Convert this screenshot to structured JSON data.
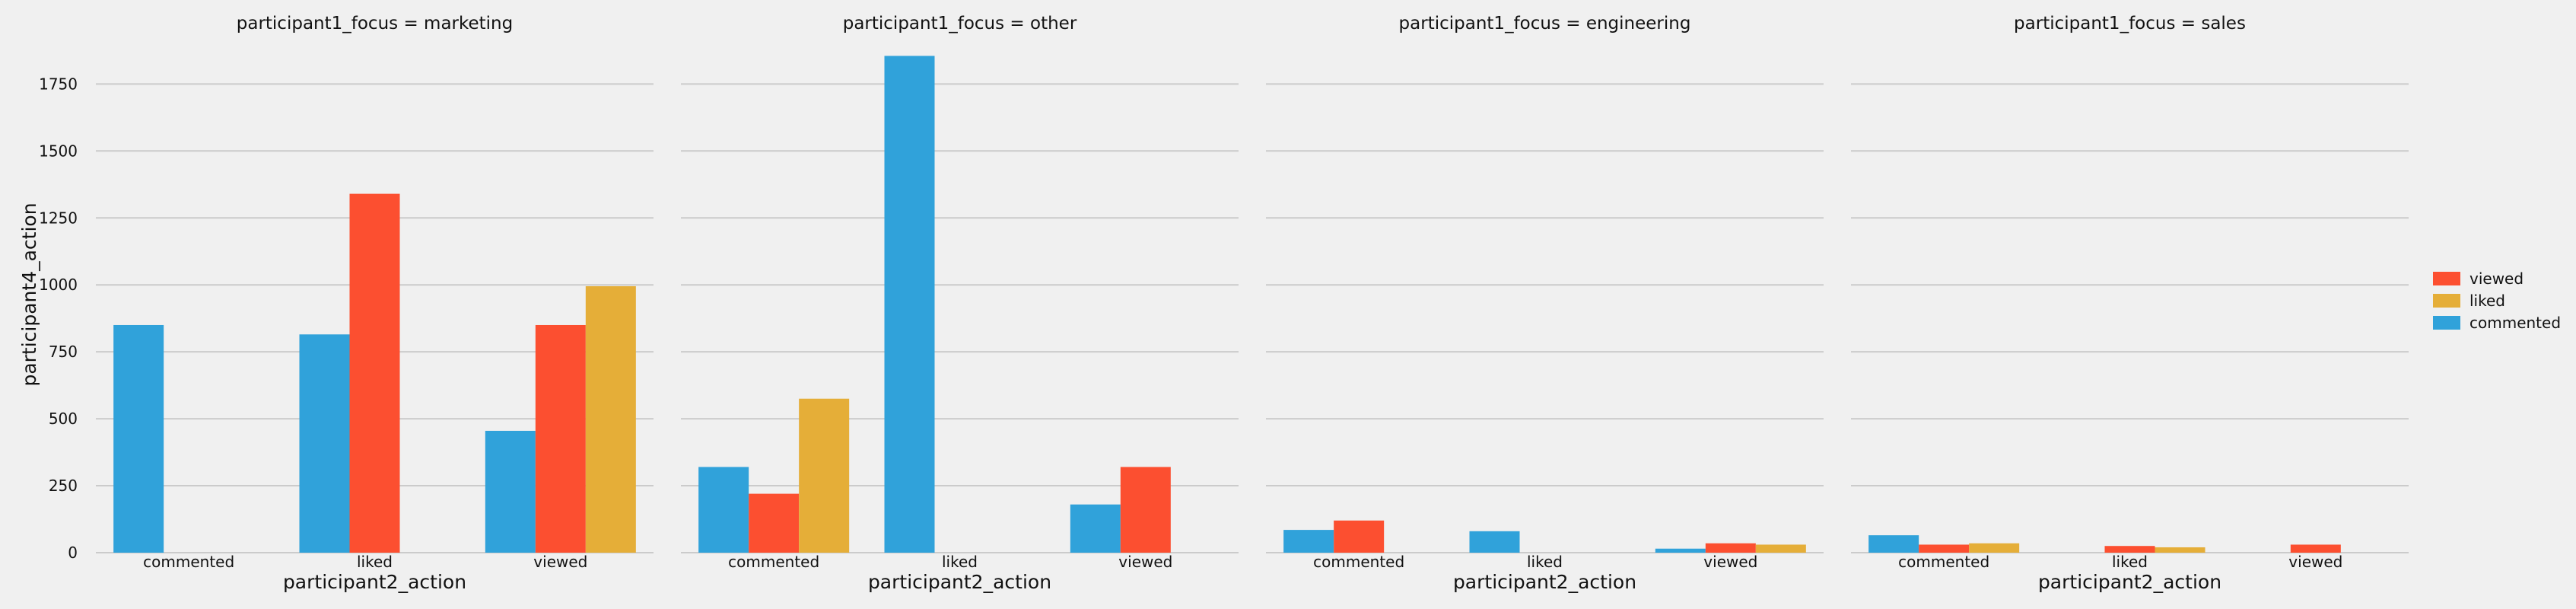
{
  "chart_data": {
    "type": "bar",
    "ylabel": "participant4_action",
    "xlabel": "participant2_action",
    "ylim": [
      0,
      1950
    ],
    "yticks": [
      0,
      250,
      500,
      750,
      1000,
      1250,
      1500,
      1750
    ],
    "categories": [
      "commented",
      "liked",
      "viewed"
    ],
    "hue_order": [
      "commented",
      "viewed",
      "liked"
    ],
    "legend": {
      "placement": "right",
      "entries": [
        "viewed",
        "liked",
        "commented"
      ]
    },
    "colors": {
      "commented": "#30a2da",
      "viewed": "#fc4f30",
      "liked": "#e5ae38",
      "background": "#f0f0f0",
      "grid": "#cbcbcb"
    },
    "grid": true,
    "facets": [
      {
        "title": "participant1_focus = marketing",
        "series": [
          {
            "name": "commented",
            "values": [
              850,
              815,
              455
            ]
          },
          {
            "name": "viewed",
            "values": [
              null,
              1340,
              850
            ]
          },
          {
            "name": "liked",
            "values": [
              null,
              null,
              995
            ]
          }
        ]
      },
      {
        "title": "participant1_focus = other",
        "series": [
          {
            "name": "commented",
            "values": [
              320,
              1855,
              180
            ]
          },
          {
            "name": "viewed",
            "values": [
              220,
              null,
              320
            ]
          },
          {
            "name": "liked",
            "values": [
              575,
              null,
              null
            ]
          }
        ]
      },
      {
        "title": "participant1_focus = engineering",
        "series": [
          {
            "name": "commented",
            "values": [
              85,
              80,
              15
            ]
          },
          {
            "name": "viewed",
            "values": [
              120,
              null,
              35
            ]
          },
          {
            "name": "liked",
            "values": [
              null,
              null,
              30
            ]
          }
        ]
      },
      {
        "title": "participant1_focus = sales",
        "series": [
          {
            "name": "commented",
            "values": [
              65,
              null,
              null
            ]
          },
          {
            "name": "viewed",
            "values": [
              30,
              25,
              30
            ]
          },
          {
            "name": "liked",
            "values": [
              35,
              20,
              null
            ]
          }
        ]
      }
    ]
  }
}
